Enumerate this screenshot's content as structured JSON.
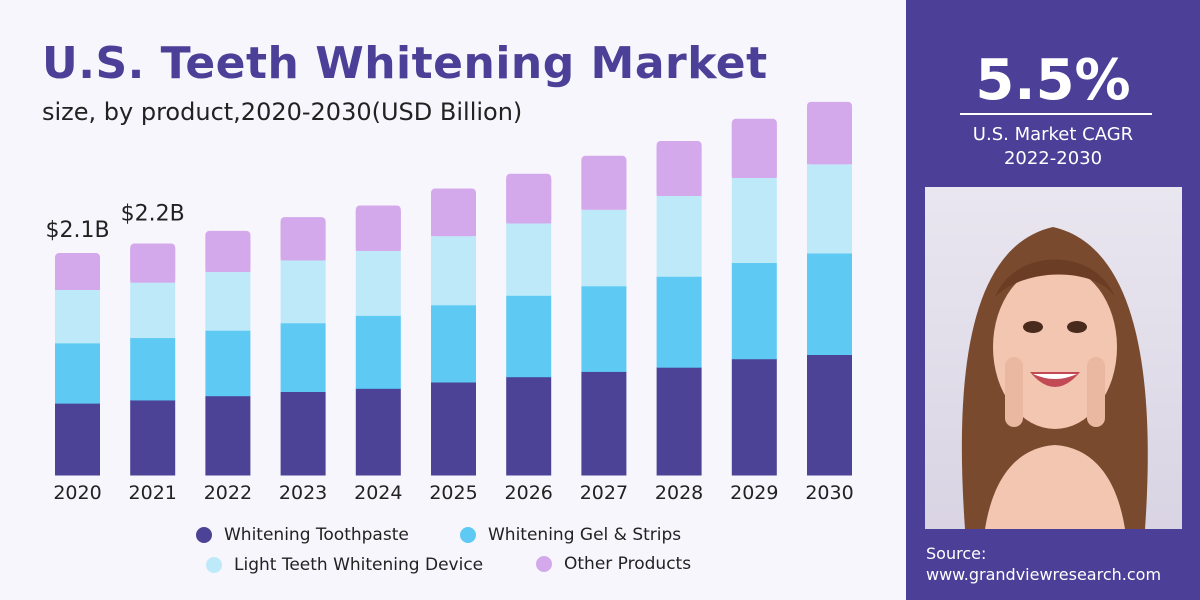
{
  "title": "U.S. Teeth Whitening Market",
  "subtitle": "size, by product,2020-2030(USD Billion)",
  "chart_data": {
    "type": "bar",
    "stacked": true,
    "categories": [
      "2020",
      "2021",
      "2022",
      "2023",
      "2024",
      "2025",
      "2026",
      "2027",
      "2028",
      "2029",
      "2030"
    ],
    "series": [
      {
        "name": "Whitening Toothpaste",
        "color": "#4c4397",
        "values": [
          0.68,
          0.71,
          0.75,
          0.79,
          0.82,
          0.88,
          0.93,
          0.98,
          1.02,
          1.1,
          1.14
        ]
      },
      {
        "name": "Whitening Gel & Strips",
        "color": "#5ecaf4",
        "values": [
          0.57,
          0.59,
          0.62,
          0.65,
          0.69,
          0.73,
          0.77,
          0.81,
          0.86,
          0.91,
          0.96
        ]
      },
      {
        "name": "Light Teeth Whitening Device",
        "color": "#bde9f9",
        "values": [
          0.5,
          0.52,
          0.55,
          0.59,
          0.61,
          0.65,
          0.68,
          0.72,
          0.76,
          0.8,
          0.84
        ]
      },
      {
        "name": "Other Products",
        "color": "#d4a9ec",
        "values": [
          0.35,
          0.37,
          0.39,
          0.41,
          0.43,
          0.45,
          0.47,
          0.51,
          0.52,
          0.56,
          0.59
        ]
      }
    ],
    "annotations": [
      {
        "category": "2020",
        "text": "$2.1B"
      },
      {
        "category": "2021",
        "text": "$2.2B"
      }
    ],
    "ylim": [
      0,
      3.6
    ],
    "grid": false,
    "legend": "bottom"
  },
  "side": {
    "cagr": "5.5%",
    "cagr_label": "U.S. Market CAGR",
    "cagr_period": "2022-2030",
    "source_label": "Source:",
    "source_url": "www.grandviewresearch.com"
  }
}
